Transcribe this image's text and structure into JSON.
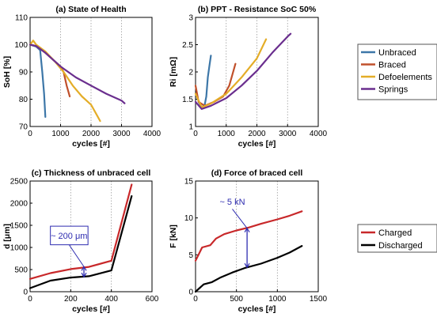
{
  "chart_data": [
    {
      "type": "line",
      "title": "(a) State of Health",
      "xlabel": "cycles [#]",
      "ylabel": "SoH [%]",
      "xlim": [
        0,
        4000
      ],
      "ylim": [
        70,
        110
      ],
      "xticks": [
        0,
        1000,
        2000,
        3000,
        4000
      ],
      "yticks": [
        70,
        80,
        90,
        100,
        110
      ],
      "grid": "vertical dotted",
      "series": [
        {
          "name": "Unbraced",
          "color": "#3d77a8",
          "points": [
            [
              0,
              100
            ],
            [
              200,
              99.3
            ],
            [
              330,
              98
            ],
            [
              400,
              90
            ],
            [
              460,
              82
            ],
            [
              500,
              73.5
            ]
          ]
        },
        {
          "name": "Braced",
          "color": "#c0502b",
          "points": [
            [
              0,
              100
            ],
            [
              200,
              99.5
            ],
            [
              500,
              97
            ],
            [
              800,
              94
            ],
            [
              1000,
              92
            ],
            [
              1100,
              90
            ],
            [
              1200,
              85
            ],
            [
              1300,
              81
            ]
          ]
        },
        {
          "name": "Defoelements",
          "color": "#e4ad28",
          "points": [
            [
              0,
              100
            ],
            [
              100,
              101.5
            ],
            [
              200,
              100
            ],
            [
              500,
              97.5
            ],
            [
              800,
              94
            ],
            [
              1100,
              90
            ],
            [
              1400,
              85
            ],
            [
              1700,
              81
            ],
            [
              2000,
              78
            ],
            [
              2200,
              74
            ],
            [
              2300,
              72
            ]
          ]
        },
        {
          "name": "Springs",
          "color": "#6a2e8e",
          "points": [
            [
              0,
              100
            ],
            [
              200,
              99.5
            ],
            [
              500,
              97
            ],
            [
              1000,
              92
            ],
            [
              1500,
              88
            ],
            [
              2000,
              85
            ],
            [
              2500,
              82
            ],
            [
              3000,
              79.5
            ],
            [
              3100,
              78.5
            ]
          ]
        }
      ]
    },
    {
      "type": "line",
      "title": "(b) PPT - Resistance SoC 50%",
      "xlabel": "cycles [#]",
      "ylabel": "Ri [mΩ]",
      "xlim": [
        0,
        4000
      ],
      "ylim": [
        1,
        3
      ],
      "xticks": [
        0,
        1000,
        2000,
        3000,
        4000
      ],
      "yticks": [
        1,
        1.5,
        2,
        2.5,
        3
      ],
      "grid": "vertical dotted",
      "series": [
        {
          "name": "Unbraced",
          "color": "#3d77a8",
          "points": [
            [
              100,
              1.45
            ],
            [
              200,
              1.35
            ],
            [
              300,
              1.4
            ],
            [
              350,
              1.55
            ],
            [
              400,
              1.9
            ],
            [
              450,
              2.1
            ],
            [
              500,
              2.3
            ]
          ]
        },
        {
          "name": "Braced",
          "color": "#c0502b",
          "points": [
            [
              0,
              1.75
            ],
            [
              100,
              1.45
            ],
            [
              300,
              1.38
            ],
            [
              600,
              1.45
            ],
            [
              900,
              1.55
            ],
            [
              1100,
              1.75
            ],
            [
              1200,
              1.95
            ],
            [
              1300,
              2.15
            ]
          ]
        },
        {
          "name": "Defoelements",
          "color": "#e4ad28",
          "points": [
            [
              0,
              1.6
            ],
            [
              200,
              1.35
            ],
            [
              500,
              1.42
            ],
            [
              1000,
              1.6
            ],
            [
              1500,
              1.9
            ],
            [
              2000,
              2.25
            ],
            [
              2300,
              2.6
            ]
          ]
        },
        {
          "name": "Springs",
          "color": "#6a2e8e",
          "points": [
            [
              0,
              1.45
            ],
            [
              200,
              1.32
            ],
            [
              500,
              1.38
            ],
            [
              1000,
              1.52
            ],
            [
              1500,
              1.75
            ],
            [
              2000,
              2.02
            ],
            [
              2500,
              2.35
            ],
            [
              3000,
              2.65
            ],
            [
              3100,
              2.7
            ]
          ]
        }
      ]
    },
    {
      "type": "line",
      "title": "(c) Thickness of unbraced cell",
      "xlabel": "cycles [#]",
      "ylabel": "d [μm]",
      "xlim": [
        0,
        600
      ],
      "ylim": [
        0,
        2500
      ],
      "xticks": [
        0,
        200,
        400,
        600
      ],
      "yticks": [
        0,
        500,
        1000,
        1500,
        2000,
        2500
      ],
      "grid": "vertical dotted",
      "annotation": "~ 200 μm",
      "series": [
        {
          "name": "Charged",
          "color": "#c8282a",
          "points": [
            [
              0,
              290
            ],
            [
              100,
              420
            ],
            [
              200,
              510
            ],
            [
              290,
              560
            ],
            [
              400,
              700
            ],
            [
              500,
              2420
            ]
          ]
        },
        {
          "name": "Discharged",
          "color": "#000000",
          "points": [
            [
              0,
              80
            ],
            [
              100,
              250
            ],
            [
              200,
              320
            ],
            [
              290,
              350
            ],
            [
              400,
              480
            ],
            [
              500,
              2160
            ]
          ]
        }
      ]
    },
    {
      "type": "line",
      "title": "(d) Force of braced cell",
      "xlabel": "cycles [#]",
      "ylabel": "F [kN]",
      "xlim": [
        0,
        1500
      ],
      "ylim": [
        0,
        15
      ],
      "xticks": [
        0,
        500,
        1000,
        1500
      ],
      "yticks": [
        0,
        5,
        10,
        15
      ],
      "grid": "vertical dotted",
      "annotation": "~ 5 kN",
      "series": [
        {
          "name": "Charged",
          "color": "#c8282a",
          "points": [
            [
              0,
              4.2
            ],
            [
              80,
              6.0
            ],
            [
              180,
              6.3
            ],
            [
              250,
              7.2
            ],
            [
              350,
              7.8
            ],
            [
              500,
              8.3
            ],
            [
              650,
              8.7
            ],
            [
              800,
              9.2
            ],
            [
              1000,
              9.8
            ],
            [
              1150,
              10.3
            ],
            [
              1300,
              10.9
            ]
          ]
        },
        {
          "name": "Discharged",
          "color": "#000000",
          "points": [
            [
              0,
              0
            ],
            [
              100,
              1.0
            ],
            [
              200,
              1.3
            ],
            [
              300,
              1.9
            ],
            [
              450,
              2.6
            ],
            [
              600,
              3.2
            ],
            [
              800,
              3.8
            ],
            [
              1000,
              4.6
            ],
            [
              1150,
              5.3
            ],
            [
              1300,
              6.2
            ]
          ]
        }
      ]
    }
  ],
  "legends": [
    {
      "entries": [
        {
          "name": "Unbraced",
          "color": "#3d77a8"
        },
        {
          "name": "Braced",
          "color": "#c0502b"
        },
        {
          "name": "Defoelements",
          "color": "#e4ad28"
        },
        {
          "name": "Springs",
          "color": "#6a2e8e"
        }
      ]
    },
    {
      "entries": [
        {
          "name": "Charged",
          "color": "#c8282a"
        },
        {
          "name": "Discharged",
          "color": "#000000"
        }
      ]
    }
  ]
}
